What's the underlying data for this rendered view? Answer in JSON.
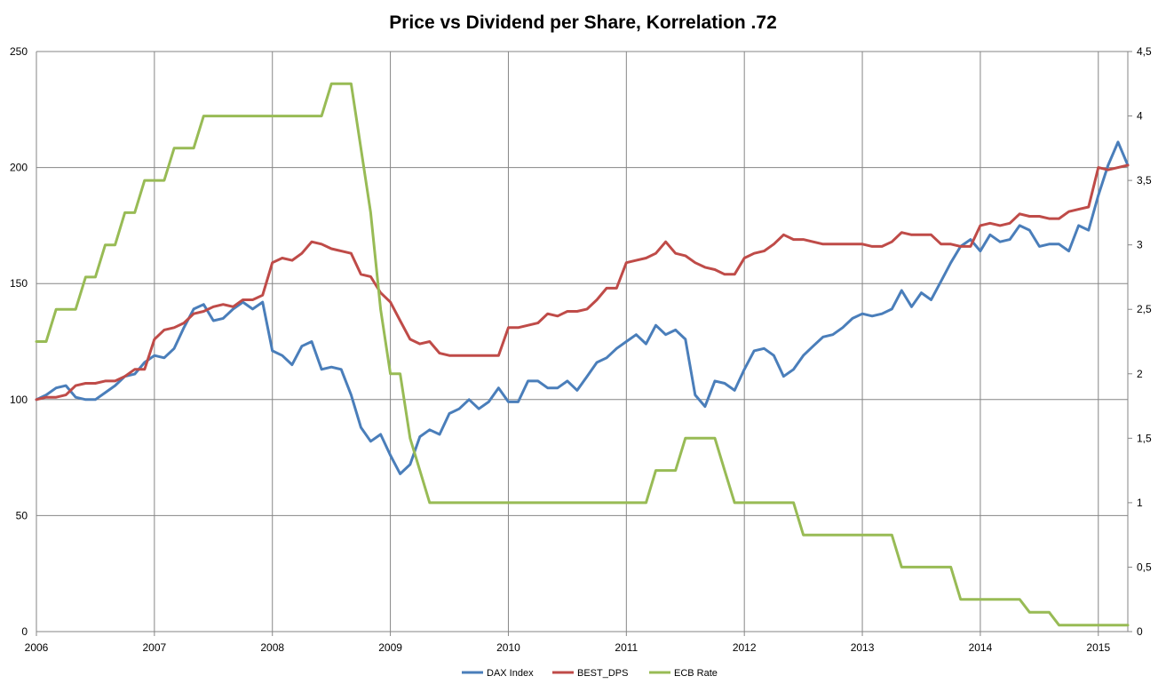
{
  "chart_data": {
    "type": "line",
    "title": "Price vs Dividend per Share, Korrelation .72",
    "xlabel": "",
    "ylabel": "",
    "x_tick_labels": [
      "2006",
      "2007",
      "2008",
      "2009",
      "2010",
      "2011",
      "2012",
      "2013",
      "2014",
      "2015"
    ],
    "x_range": [
      2006.0,
      2015.25
    ],
    "y_left": {
      "min": 0,
      "max": 250,
      "ticks": [
        "0",
        "50",
        "100",
        "150",
        "200",
        "250"
      ]
    },
    "y_right": {
      "min": 0,
      "max": 4.5,
      "ticks": [
        "0",
        "0,5",
        "1",
        "1,5",
        "2",
        "2,5",
        "3",
        "3,5",
        "4",
        "4,5"
      ]
    },
    "grid": true,
    "legend_position": "bottom",
    "colors": {
      "dax": "#4a7eba",
      "dps": "#bf4b48",
      "ecb": "#98bb55",
      "grid": "#868686",
      "axis": "#868686"
    },
    "series": [
      {
        "name": "DAX Index",
        "axis": "left",
        "color": "#4a7eba",
        "x": [
          2006.0,
          2006.083,
          2006.167,
          2006.25,
          2006.333,
          2006.417,
          2006.5,
          2006.583,
          2006.667,
          2006.75,
          2006.833,
          2006.917,
          2007.0,
          2007.083,
          2007.167,
          2007.25,
          2007.333,
          2007.417,
          2007.5,
          2007.583,
          2007.667,
          2007.75,
          2007.833,
          2007.917,
          2008.0,
          2008.083,
          2008.167,
          2008.25,
          2008.333,
          2008.417,
          2008.5,
          2008.583,
          2008.667,
          2008.75,
          2008.833,
          2008.917,
          2009.0,
          2009.083,
          2009.167,
          2009.25,
          2009.333,
          2009.417,
          2009.5,
          2009.583,
          2009.667,
          2009.75,
          2009.833,
          2009.917,
          2010.0,
          2010.083,
          2010.167,
          2010.25,
          2010.333,
          2010.417,
          2010.5,
          2010.583,
          2010.667,
          2010.75,
          2010.833,
          2010.917,
          2011.0,
          2011.083,
          2011.167,
          2011.25,
          2011.333,
          2011.417,
          2011.5,
          2011.583,
          2011.667,
          2011.75,
          2011.833,
          2011.917,
          2012.0,
          2012.083,
          2012.167,
          2012.25,
          2012.333,
          2012.417,
          2012.5,
          2012.583,
          2012.667,
          2012.75,
          2012.833,
          2012.917,
          2013.0,
          2013.083,
          2013.167,
          2013.25,
          2013.333,
          2013.417,
          2013.5,
          2013.583,
          2013.667,
          2013.75,
          2013.833,
          2013.917,
          2014.0,
          2014.083,
          2014.167,
          2014.25,
          2014.333,
          2014.417,
          2014.5,
          2014.583,
          2014.667,
          2014.75,
          2014.833,
          2014.917,
          2015.0,
          2015.083,
          2015.167,
          2015.25
        ],
        "values": [
          100,
          102,
          105,
          106,
          101,
          100,
          100,
          103,
          106,
          110,
          111,
          116,
          119,
          118,
          122,
          131,
          139,
          141,
          134,
          135,
          139,
          142,
          139,
          142,
          121,
          119,
          115,
          123,
          125,
          113,
          114,
          113,
          102,
          88,
          82,
          85,
          76,
          68,
          72,
          84,
          87,
          85,
          94,
          96,
          100,
          96,
          99,
          105,
          99,
          99,
          108,
          108,
          105,
          105,
          108,
          104,
          110,
          116,
          118,
          122,
          125,
          128,
          124,
          132,
          128,
          130,
          126,
          102,
          97,
          108,
          107,
          104,
          113,
          121,
          122,
          119,
          110,
          113,
          119,
          123,
          127,
          128,
          131,
          135,
          137,
          136,
          137,
          139,
          147,
          140,
          146,
          143,
          151,
          159,
          166,
          169,
          164,
          171,
          168,
          169,
          175,
          173,
          166,
          167,
          167,
          164,
          175,
          173,
          188,
          201,
          211,
          201
        ]
      },
      {
        "name": "BEST_DPS",
        "axis": "left",
        "color": "#bf4b48",
        "x": [
          2006.0,
          2006.083,
          2006.167,
          2006.25,
          2006.333,
          2006.417,
          2006.5,
          2006.583,
          2006.667,
          2006.75,
          2006.833,
          2006.917,
          2007.0,
          2007.083,
          2007.167,
          2007.25,
          2007.333,
          2007.417,
          2007.5,
          2007.583,
          2007.667,
          2007.75,
          2007.833,
          2007.917,
          2008.0,
          2008.083,
          2008.167,
          2008.25,
          2008.333,
          2008.417,
          2008.5,
          2008.583,
          2008.667,
          2008.75,
          2008.833,
          2008.917,
          2009.0,
          2009.083,
          2009.167,
          2009.25,
          2009.333,
          2009.417,
          2009.5,
          2009.583,
          2009.667,
          2009.75,
          2009.833,
          2009.917,
          2010.0,
          2010.083,
          2010.167,
          2010.25,
          2010.333,
          2010.417,
          2010.5,
          2010.583,
          2010.667,
          2010.75,
          2010.833,
          2010.917,
          2011.0,
          2011.083,
          2011.167,
          2011.25,
          2011.333,
          2011.417,
          2011.5,
          2011.583,
          2011.667,
          2011.75,
          2011.833,
          2011.917,
          2012.0,
          2012.083,
          2012.167,
          2012.25,
          2012.333,
          2012.417,
          2012.5,
          2012.583,
          2012.667,
          2012.75,
          2012.833,
          2012.917,
          2013.0,
          2013.083,
          2013.167,
          2013.25,
          2013.333,
          2013.417,
          2013.5,
          2013.583,
          2013.667,
          2013.75,
          2013.833,
          2013.917,
          2014.0,
          2014.083,
          2014.167,
          2014.25,
          2014.333,
          2014.417,
          2014.5,
          2014.583,
          2014.667,
          2014.75,
          2014.833,
          2014.917,
          2015.0,
          2015.083,
          2015.167,
          2015.25
        ],
        "values": [
          100,
          101,
          101,
          102,
          106,
          107,
          107,
          108,
          108,
          110,
          113,
          113,
          126,
          130,
          131,
          133,
          137,
          138,
          140,
          141,
          140,
          143,
          143,
          145,
          159,
          161,
          160,
          163,
          168,
          167,
          165,
          164,
          163,
          154,
          153,
          146,
          142,
          134,
          126,
          124,
          125,
          120,
          119,
          119,
          119,
          119,
          119,
          119,
          131,
          131,
          132,
          133,
          137,
          136,
          138,
          138,
          139,
          143,
          148,
          148,
          159,
          160,
          161,
          163,
          168,
          163,
          162,
          159,
          157,
          156,
          154,
          154,
          161,
          163,
          164,
          167,
          171,
          169,
          169,
          168,
          167,
          167,
          167,
          167,
          167,
          166,
          166,
          168,
          172,
          171,
          171,
          171,
          167,
          167,
          166,
          166,
          175,
          176,
          175,
          176,
          180,
          179,
          179,
          178,
          178,
          181,
          182,
          183,
          200,
          199,
          200,
          201
        ]
      },
      {
        "name": "ECB Rate",
        "axis": "right",
        "color": "#98bb55",
        "x": [
          2006.0,
          2006.083,
          2006.167,
          2006.25,
          2006.333,
          2006.417,
          2006.5,
          2006.583,
          2006.667,
          2006.75,
          2006.833,
          2006.917,
          2007.0,
          2007.083,
          2007.167,
          2007.25,
          2007.333,
          2007.417,
          2007.5,
          2007.583,
          2007.667,
          2007.75,
          2007.833,
          2007.917,
          2008.0,
          2008.083,
          2008.167,
          2008.25,
          2008.333,
          2008.417,
          2008.5,
          2008.583,
          2008.667,
          2008.75,
          2008.833,
          2008.917,
          2009.0,
          2009.083,
          2009.167,
          2009.25,
          2009.333,
          2009.417,
          2009.5,
          2009.583,
          2009.667,
          2009.75,
          2009.833,
          2009.917,
          2010.0,
          2010.083,
          2010.167,
          2010.25,
          2010.333,
          2010.417,
          2010.5,
          2010.583,
          2010.667,
          2010.75,
          2010.833,
          2010.917,
          2011.0,
          2011.083,
          2011.167,
          2011.25,
          2011.333,
          2011.417,
          2011.5,
          2011.583,
          2011.667,
          2011.75,
          2011.833,
          2011.917,
          2012.0,
          2012.083,
          2012.167,
          2012.25,
          2012.333,
          2012.417,
          2012.5,
          2012.583,
          2012.667,
          2012.75,
          2012.833,
          2012.917,
          2013.0,
          2013.083,
          2013.167,
          2013.25,
          2013.333,
          2013.417,
          2013.5,
          2013.583,
          2013.667,
          2013.75,
          2013.833,
          2013.917,
          2014.0,
          2014.083,
          2014.167,
          2014.25,
          2014.333,
          2014.417,
          2014.5,
          2014.583,
          2014.667,
          2014.75,
          2014.833,
          2014.917,
          2015.0,
          2015.083,
          2015.167,
          2015.25
        ],
        "values": [
          2.25,
          2.25,
          2.5,
          2.5,
          2.5,
          2.75,
          2.75,
          3.0,
          3.0,
          3.25,
          3.25,
          3.5,
          3.5,
          3.5,
          3.75,
          3.75,
          3.75,
          4.0,
          4.0,
          4.0,
          4.0,
          4.0,
          4.0,
          4.0,
          4.0,
          4.0,
          4.0,
          4.0,
          4.0,
          4.0,
          4.25,
          4.25,
          4.25,
          3.75,
          3.25,
          2.5,
          2.0,
          2.0,
          1.5,
          1.25,
          1.0,
          1.0,
          1.0,
          1.0,
          1.0,
          1.0,
          1.0,
          1.0,
          1.0,
          1.0,
          1.0,
          1.0,
          1.0,
          1.0,
          1.0,
          1.0,
          1.0,
          1.0,
          1.0,
          1.0,
          1.0,
          1.0,
          1.0,
          1.25,
          1.25,
          1.25,
          1.5,
          1.5,
          1.5,
          1.5,
          1.25,
          1.0,
          1.0,
          1.0,
          1.0,
          1.0,
          1.0,
          1.0,
          0.75,
          0.75,
          0.75,
          0.75,
          0.75,
          0.75,
          0.75,
          0.75,
          0.75,
          0.75,
          0.5,
          0.5,
          0.5,
          0.5,
          0.5,
          0.5,
          0.25,
          0.25,
          0.25,
          0.25,
          0.25,
          0.25,
          0.25,
          0.15,
          0.15,
          0.15,
          0.05,
          0.05,
          0.05,
          0.05,
          0.05,
          0.05,
          0.05,
          0.05
        ]
      }
    ]
  }
}
